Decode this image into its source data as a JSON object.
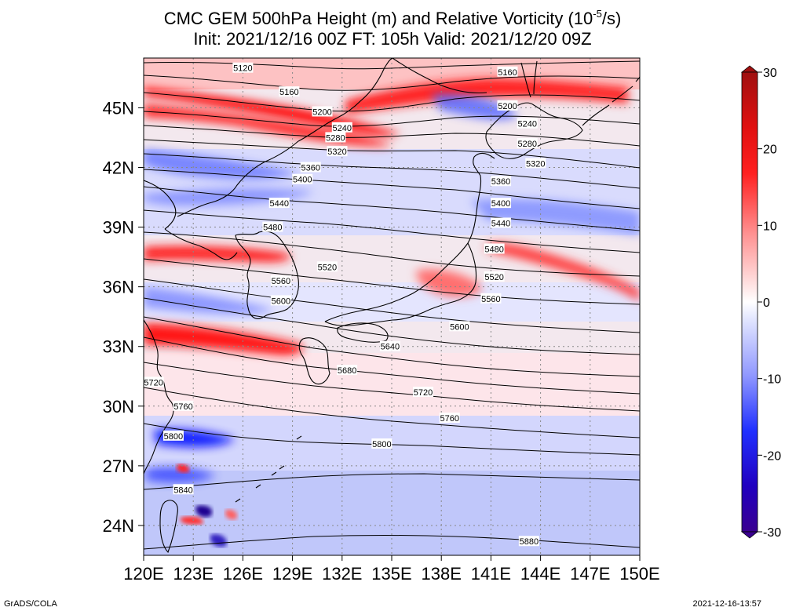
{
  "title": {
    "line1": "CMC GEM 500hPa Height (m) and Relative Vorticity (10",
    "line1_exp": "-5",
    "line1_end": "/s)",
    "line2": "Init: 2021/12/16 00Z  FT: 105h  Valid: 2021/12/20 09Z"
  },
  "footer": {
    "left": "GrADS/COLA",
    "right": "2021-12-16-13:57"
  },
  "map": {
    "lon_range": [
      120,
      150
    ],
    "lat_range": [
      22.5,
      47.5
    ],
    "x_ticks": [
      {
        "value": 120,
        "label": "120E"
      },
      {
        "value": 123,
        "label": "123E"
      },
      {
        "value": 126,
        "label": "126E"
      },
      {
        "value": 129,
        "label": "129E"
      },
      {
        "value": 132,
        "label": "132E"
      },
      {
        "value": 135,
        "label": "135E"
      },
      {
        "value": 138,
        "label": "138E"
      },
      {
        "value": 141,
        "label": "141E"
      },
      {
        "value": 144,
        "label": "144E"
      },
      {
        "value": 147,
        "label": "147E"
      },
      {
        "value": 150,
        "label": "150E"
      }
    ],
    "y_ticks": [
      {
        "value": 24,
        "label": "24N"
      },
      {
        "value": 27,
        "label": "27N"
      },
      {
        "value": 30,
        "label": "30N"
      },
      {
        "value": 33,
        "label": "33N"
      },
      {
        "value": 36,
        "label": "36N"
      },
      {
        "value": 39,
        "label": "39N"
      },
      {
        "value": 42,
        "label": "42N"
      },
      {
        "value": 45,
        "label": "45N"
      }
    ],
    "gridlines": true
  },
  "colorbar": {
    "range": [
      -30,
      30
    ],
    "ticks": [
      {
        "value": 30,
        "label": "30"
      },
      {
        "value": 20,
        "label": "20"
      },
      {
        "value": 10,
        "label": "10"
      },
      {
        "value": 0,
        "label": "0"
      },
      {
        "value": -10,
        "label": "-10"
      },
      {
        "value": -20,
        "label": "-20"
      },
      {
        "value": -30,
        "label": "-30"
      }
    ],
    "colors": {
      "pos_max": "#a01010",
      "pos_mid": "#ff1010",
      "pos_low": "#ffb0b0",
      "zero": "#ffffff",
      "neg_low": "#b8c0ff",
      "neg_mid": "#1020ff",
      "neg_max": "#3a0090"
    }
  },
  "contours": [
    {
      "label": "5120",
      "lon": 126.0,
      "lat": 47.0
    },
    {
      "label": "5160",
      "lon": 128.8,
      "lat": 45.8
    },
    {
      "label": "5160",
      "lon": 142.0,
      "lat": 46.8
    },
    {
      "label": "5200",
      "lon": 130.8,
      "lat": 44.8
    },
    {
      "label": "5200",
      "lon": 142.0,
      "lat": 45.1
    },
    {
      "label": "5240",
      "lon": 132.0,
      "lat": 44.0
    },
    {
      "label": "5240",
      "lon": 143.2,
      "lat": 44.2
    },
    {
      "label": "5280",
      "lon": 131.6,
      "lat": 43.5
    },
    {
      "label": "5280",
      "lon": 143.2,
      "lat": 43.2
    },
    {
      "label": "5320",
      "lon": 131.7,
      "lat": 42.8
    },
    {
      "label": "5320",
      "lon": 143.7,
      "lat": 42.2
    },
    {
      "label": "5360",
      "lon": 130.1,
      "lat": 42.0
    },
    {
      "label": "5360",
      "lon": 141.6,
      "lat": 41.3
    },
    {
      "label": "5400",
      "lon": 129.6,
      "lat": 41.4
    },
    {
      "label": "5400",
      "lon": 141.6,
      "lat": 40.2
    },
    {
      "label": "5440",
      "lon": 128.2,
      "lat": 40.2
    },
    {
      "label": "5440",
      "lon": 141.6,
      "lat": 39.2
    },
    {
      "label": "5480",
      "lon": 127.8,
      "lat": 39.0
    },
    {
      "label": "5480",
      "lon": 141.2,
      "lat": 37.9
    },
    {
      "label": "5520",
      "lon": 131.1,
      "lat": 37.0
    },
    {
      "label": "5520",
      "lon": 141.2,
      "lat": 36.5
    },
    {
      "label": "5560",
      "lon": 128.3,
      "lat": 36.3
    },
    {
      "label": "5560",
      "lon": 141.0,
      "lat": 35.4
    },
    {
      "label": "5600",
      "lon": 128.3,
      "lat": 35.3
    },
    {
      "label": "5600",
      "lon": 139.1,
      "lat": 34.0
    },
    {
      "label": "5640",
      "lon": 134.9,
      "lat": 33.0
    },
    {
      "label": "5680",
      "lon": 132.3,
      "lat": 31.8
    },
    {
      "label": "5720",
      "lon": 120.6,
      "lat": 31.2
    },
    {
      "label": "5720",
      "lon": 136.9,
      "lat": 30.7
    },
    {
      "label": "5760",
      "lon": 122.4,
      "lat": 30.0
    },
    {
      "label": "5760",
      "lon": 138.5,
      "lat": 29.4
    },
    {
      "label": "5800",
      "lon": 121.8,
      "lat": 28.5
    },
    {
      "label": "5800",
      "lon": 134.4,
      "lat": 28.1
    },
    {
      "label": "5840",
      "lon": 122.4,
      "lat": 25.8
    },
    {
      "label": "5880",
      "lon": 143.3,
      "lat": 23.2
    }
  ]
}
